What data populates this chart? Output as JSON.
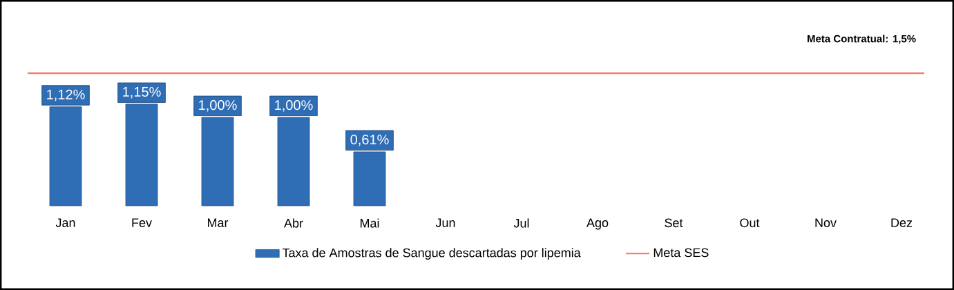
{
  "chart_data": {
    "type": "bar",
    "categories": [
      "Jan",
      "Fev",
      "Mar",
      "Abr",
      "Mai",
      "Jun",
      "Jul",
      "Ago",
      "Set",
      "Out",
      "Nov",
      "Dez"
    ],
    "series": [
      {
        "name": "Taxa de Amostras de Sangue descartadas por lipemia",
        "color": "#2f6db5",
        "values": [
          1.12,
          1.15,
          1.0,
          1.0,
          0.61,
          null,
          null,
          null,
          null,
          null,
          null,
          null
        ],
        "value_labels": [
          "1,12%",
          "1,15%",
          "1,00%",
          "1,00%",
          "0,61%",
          null,
          null,
          null,
          null,
          null,
          null,
          null
        ]
      }
    ],
    "tick_labels": "x",
    "ref_lines": [
      {
        "axis": "y",
        "value": 1.5,
        "label": "Meta SES",
        "color": "#f08070"
      }
    ],
    "annotations": [
      {
        "text": "Meta Contratual: 1,5%",
        "y": 1.5
      }
    ],
    "legend": "bottom"
  }
}
